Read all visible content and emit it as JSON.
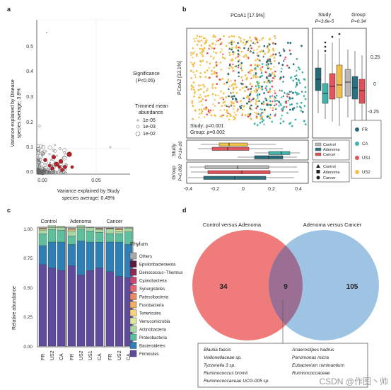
{
  "panels": {
    "a": {
      "letter": "a",
      "xlabel_line1": "Variance explained by Study",
      "xlabel_line2": "species average: 0.49%",
      "ylabel_line1": "Variance explained by Disease",
      "ylabel_line2": "species average: 3.8%",
      "yticks": [
        "0.0",
        "0.1",
        "0.2",
        "0.3",
        "0.4",
        "0.5"
      ],
      "xticks": [
        "0.00",
        "0.05"
      ],
      "legend_significance_title": "Significance",
      "legend_significance_sub": "(P<0.05)",
      "legend_abundance_title_1": "Trimmed mean",
      "legend_abundance_title_2": "abundance",
      "legend_abundance_items": [
        "1e-05",
        "1e-03",
        "1e-02"
      ],
      "colors": {
        "significant": "#b2222a",
        "grey": "#9a9a9a"
      }
    },
    "b": {
      "letter": "b",
      "title_pcoa1": "PCoA1 [17.9%]",
      "title_pcoa2": "PCoA2 [13.1%]",
      "study_title": "Study",
      "study_p": "P=3.8e-5",
      "group_title": "Group",
      "group_p": "P=0.34",
      "stat_study": "Study: ρ=0.001",
      "stat_group": "Group: ρ=0.002",
      "row_study_label": "Study",
      "row_study_p": "P<1e-16",
      "row_group_label": "Group",
      "row_group_p": "P=0.092",
      "xticks": [
        "-0.4",
        "-0.2",
        "0",
        "0.2",
        "0.4"
      ],
      "right_yticks": [
        "0.25",
        "0",
        "-0.25"
      ],
      "legend_group": [
        "Control",
        "Adenoma",
        "Cancer"
      ],
      "legend_study": [
        "FR",
        "CA",
        "US1",
        "US2"
      ],
      "colors": {
        "control": "#b8b8b8",
        "adenoma": "#2b6f82",
        "cancer": "#e0505a",
        "FR": "#236b78",
        "CA": "#3fb3a9",
        "US1": "#e05560",
        "US2": "#f1c04a"
      }
    },
    "c": {
      "letter": "c",
      "groups": [
        "Control",
        "Adenoma",
        "Cancer"
      ],
      "ylabel": "Relative abundance",
      "yticks": [
        "1.00",
        "0.75",
        "0.50",
        "0.25",
        "0.00"
      ],
      "xticks": [
        "FR",
        "US2",
        "CA",
        "FR",
        "US2",
        "US1",
        "CA",
        "FR",
        "US2",
        "CA"
      ],
      "legend_title": "Phylum",
      "phyla": [
        {
          "name": "Others",
          "color": "#a9a9a9"
        },
        {
          "name": "Epsilonbacteraeota",
          "color": "#5e1a3c"
        },
        {
          "name": "Deinococcus−Thermus",
          "color": "#8e2a55"
        },
        {
          "name": "Cyanobacteria",
          "color": "#c94a72"
        },
        {
          "name": "Synergistetes",
          "color": "#e0686e"
        },
        {
          "name": "Patescibacteria",
          "color": "#ec8a62"
        },
        {
          "name": "Fusobacteria",
          "color": "#f3b062"
        },
        {
          "name": "Tenericutes",
          "color": "#f6d47b"
        },
        {
          "name": "Verrucomicrobia",
          "color": "#dce99e"
        },
        {
          "name": "Actinobacteria",
          "color": "#a7d8a3"
        },
        {
          "name": "Proteobacteria",
          "color": "#5fbf9c"
        },
        {
          "name": "Bacteroidetes",
          "color": "#2f7fb4"
        },
        {
          "name": "Firmicutes",
          "color": "#5f4a9b"
        }
      ],
      "bars_firmicutes": [
        0.69,
        0.66,
        0.64,
        0.68,
        0.6,
        0.64,
        0.66,
        0.63,
        0.59,
        0.58
      ],
      "bars_bacteroidetes": [
        0.16,
        0.22,
        0.24,
        0.18,
        0.29,
        0.24,
        0.22,
        0.25,
        0.29,
        0.28
      ]
    },
    "d": {
      "letter": "d",
      "left_title": "Control versus Adenoma",
      "right_title": "Adenoma versus Cancer",
      "left_only": "34",
      "overlap": "9",
      "right_only": "105",
      "colors": {
        "left": "#f07b7b",
        "right": "#9fc3e3",
        "overlap": "#9a6f93"
      },
      "species_left": [
        "Blautia faecis",
        "Veillonellaceae sp.",
        "Tyzzerella 3 sp.",
        "Ruminococcus bromii",
        "Ruminococcaceae UCG-005 sp."
      ],
      "species_right": [
        "Anaerostipes hadrus",
        "Parvimonas micra",
        "Eubacterium ruminantium",
        "Ruminococcaceae"
      ]
    }
  },
  "watermark": "CSDN @作图丶帅"
}
